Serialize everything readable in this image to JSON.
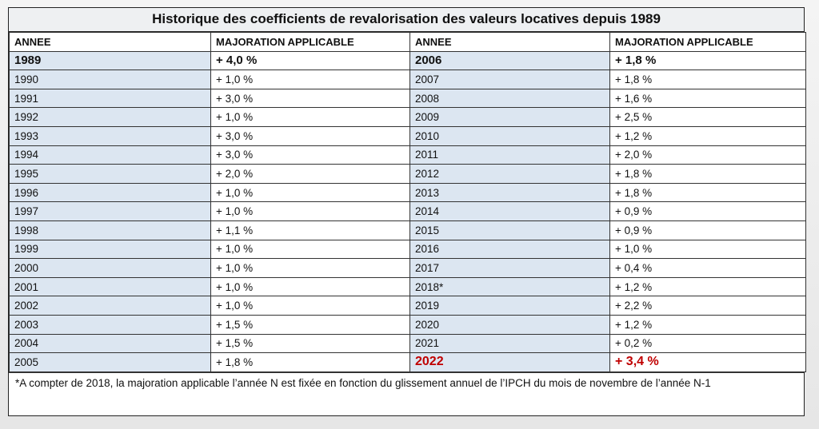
{
  "title": "Historique des coefficients de revalorisation des valeurs locatives depuis 1989",
  "headers": [
    "ANNEE",
    "MAJORATION APPLICABLE",
    "ANNEE",
    "MAJORATION APPLICABLE"
  ],
  "rows": [
    [
      "1989",
      "+ 4,0 %",
      "2006",
      "+ 1,8 %"
    ],
    [
      "1990",
      "+ 1,0 %",
      "2007",
      "+ 1,8 %"
    ],
    [
      "1991",
      "+ 3,0 %",
      "2008",
      "+ 1,6 %"
    ],
    [
      "1992",
      "+ 1,0 %",
      "2009",
      "+ 2,5 %"
    ],
    [
      "1993",
      "+ 3,0 %",
      "2010",
      "+ 1,2 %"
    ],
    [
      "1994",
      "+ 3,0 %",
      "2011",
      "+ 2,0 %"
    ],
    [
      "1995",
      "+ 2,0 %",
      "2012",
      "+ 1,8 %"
    ],
    [
      "1996",
      "+ 1,0 %",
      "2013",
      "+ 1,8 %"
    ],
    [
      "1997",
      "+ 1,0 %",
      "2014",
      "+ 0,9 %"
    ],
    [
      "1998",
      "+ 1,1 %",
      "2015",
      "+ 0,9 %"
    ],
    [
      "1999",
      "+ 1,0 %",
      "2016",
      "+ 1,0 %"
    ],
    [
      "2000",
      "+ 1,0 %",
      "2017",
      "+ 0,4 %"
    ],
    [
      "2001",
      "+ 1,0 %",
      "2018*",
      "+ 1,2 %"
    ],
    [
      "2002",
      "+ 1,0 %",
      "2019",
      "+ 2,2 %"
    ],
    [
      "2003",
      "+ 1,5 %",
      "2020",
      "+ 1,2 %"
    ],
    [
      "2004",
      "+ 1,5 %",
      "2021",
      "+ 0,2 %"
    ],
    [
      "2005",
      "+ 1,8 %",
      "2022",
      "+ 3,4 %"
    ]
  ],
  "highlight_color": "#c00000",
  "note": "*A compter de 2018, la majoration applicable l’année N est fixée en fonction du glissement annuel de l’IPCH du mois de novembre de l’année N-1"
}
